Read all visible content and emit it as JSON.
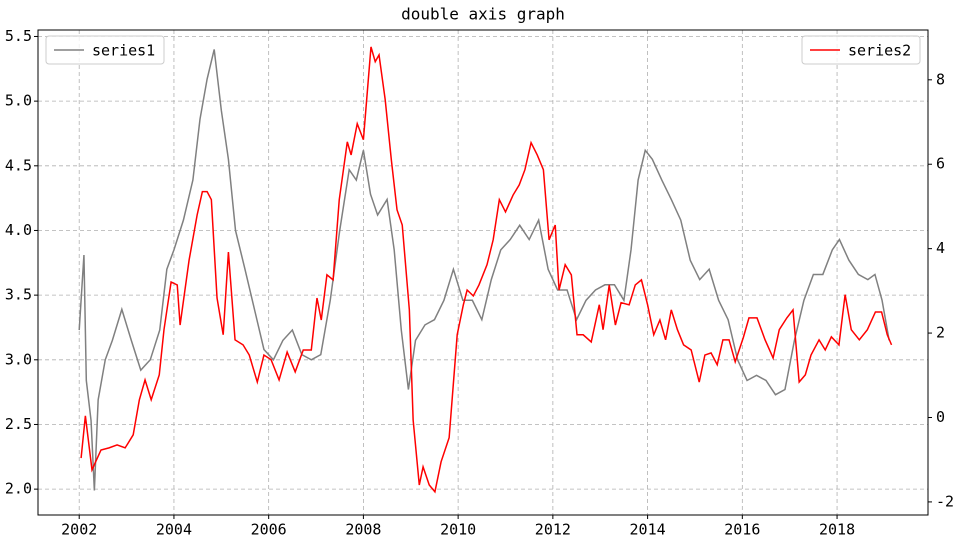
{
  "chart_data": {
    "type": "line",
    "title": "double axis graph",
    "xlim": [
      2001.13,
      2019.92
    ],
    "xticks": [
      2002,
      2004,
      2006,
      2008,
      2010,
      2012,
      2014,
      2016,
      2018
    ],
    "ylim": [
      1.8,
      5.55
    ],
    "yticks": [
      {
        "value": 2,
        "label": "2.0"
      },
      2.5,
      {
        "value": 3,
        "label": "3.0"
      },
      3.5,
      {
        "value": 4,
        "label": "4.0"
      },
      4.5,
      {
        "value": 5,
        "label": "5.0"
      },
      5.5
    ],
    "y2lim": [
      -2.31,
      9.18
    ],
    "y2ticks": [
      -2,
      0,
      2,
      4,
      6,
      8
    ],
    "grid": true,
    "series": [
      {
        "name": "series1",
        "color": "#808080",
        "axis": "y",
        "legend": "upper left",
        "x": [
          2002.0,
          2002.1,
          2002.15,
          2002.25,
          2002.32,
          2002.4,
          2002.55,
          2002.7,
          2002.9,
          2003.1,
          2003.3,
          2003.5,
          2003.7,
          2003.85,
          2004.0,
          2004.2,
          2004.4,
          2004.55,
          2004.7,
          2004.85,
          2005.0,
          2005.15,
          2005.3,
          2005.5,
          2005.7,
          2005.9,
          2006.1,
          2006.3,
          2006.5,
          2006.7,
          2006.9,
          2007.1,
          2007.3,
          2007.5,
          2007.7,
          2007.85,
          2008.0,
          2008.15,
          2008.3,
          2008.5,
          2008.65,
          2008.8,
          2008.95,
          2009.1,
          2009.3,
          2009.5,
          2009.7,
          2009.9,
          2010.1,
          2010.3,
          2010.5,
          2010.7,
          2010.9,
          2011.1,
          2011.3,
          2011.5,
          2011.7,
          2011.9,
          2012.1,
          2012.3,
          2012.5,
          2012.7,
          2012.9,
          2013.1,
          2013.3,
          2013.5,
          2013.65,
          2013.8,
          2013.95,
          2014.1,
          2014.3,
          2014.5,
          2014.7,
          2014.9,
          2015.1,
          2015.3,
          2015.5,
          2015.7,
          2015.9,
          2016.1,
          2016.3,
          2016.5,
          2016.7,
          2016.9,
          2017.1,
          2017.3,
          2017.5,
          2017.7,
          2017.9,
          2018.05,
          2018.25,
          2018.45,
          2018.65,
          2018.8,
          2018.95,
          2019.1
        ],
        "values": [
          3.23,
          3.81,
          2.84,
          2.53,
          1.99,
          2.69,
          3.0,
          3.15,
          3.39,
          3.15,
          2.92,
          3.0,
          3.23,
          3.7,
          3.85,
          4.08,
          4.39,
          4.86,
          5.17,
          5.4,
          4.93,
          4.55,
          4.0,
          3.7,
          3.39,
          3.08,
          3.0,
          3.15,
          3.23,
          3.04,
          3.0,
          3.04,
          3.46,
          4.0,
          4.47,
          4.39,
          4.62,
          4.28,
          4.12,
          4.24,
          3.85,
          3.23,
          2.77,
          3.15,
          3.27,
          3.31,
          3.46,
          3.7,
          3.46,
          3.46,
          3.31,
          3.62,
          3.85,
          3.93,
          4.04,
          3.93,
          4.08,
          3.7,
          3.54,
          3.54,
          3.31,
          3.46,
          3.54,
          3.58,
          3.58,
          3.46,
          3.85,
          4.39,
          4.62,
          4.55,
          4.39,
          4.24,
          4.08,
          3.77,
          3.62,
          3.7,
          3.46,
          3.31,
          3.0,
          2.84,
          2.88,
          2.84,
          2.73,
          2.77,
          3.15,
          3.46,
          3.66,
          3.66,
          3.85,
          3.93,
          3.77,
          3.66,
          3.62,
          3.66,
          3.46,
          3.15
        ]
      },
      {
        "name": "series2",
        "color": "#ff0000",
        "axis": "y2",
        "legend": "upper right",
        "x": [
          2002.04,
          2002.13,
          2002.27,
          2002.46,
          2002.63,
          2002.8,
          2002.97,
          2003.14,
          2003.27,
          2003.39,
          2003.52,
          2003.69,
          2003.79,
          2003.94,
          2004.07,
          2004.13,
          2004.32,
          2004.49,
          2004.6,
          2004.7,
          2004.79,
          2004.91,
          2005.04,
          2005.15,
          2005.29,
          2005.46,
          2005.59,
          2005.76,
          2005.9,
          2006.05,
          2006.22,
          2006.39,
          2006.56,
          2006.73,
          2006.9,
          2007.02,
          2007.11,
          2007.23,
          2007.36,
          2007.49,
          2007.66,
          2007.74,
          2007.87,
          2008.0,
          2008.16,
          2008.25,
          2008.33,
          2008.46,
          2008.59,
          2008.71,
          2008.82,
          2008.97,
          2009.05,
          2009.18,
          2009.26,
          2009.39,
          2009.51,
          2009.64,
          2009.81,
          2009.98,
          2010.11,
          2010.19,
          2010.32,
          2010.44,
          2010.61,
          2010.74,
          2010.87,
          2011.0,
          2011.16,
          2011.29,
          2011.41,
          2011.54,
          2011.67,
          2011.8,
          2011.92,
          2012.05,
          2012.13,
          2012.26,
          2012.39,
          2012.51,
          2012.64,
          2012.81,
          2012.98,
          2013.06,
          2013.19,
          2013.32,
          2013.44,
          2013.61,
          2013.74,
          2013.87,
          2014.0,
          2014.13,
          2014.26,
          2014.38,
          2014.5,
          2014.63,
          2014.76,
          2014.92,
          2015.09,
          2015.21,
          2015.34,
          2015.47,
          2015.59,
          2015.72,
          2015.85,
          2016.02,
          2016.14,
          2016.31,
          2016.48,
          2016.65,
          2016.78,
          2016.94,
          2017.07,
          2017.2,
          2017.33,
          2017.45,
          2017.62,
          2017.75,
          2017.88,
          2018.04,
          2018.17,
          2018.3,
          2018.47,
          2018.64,
          2018.81,
          2018.94,
          2019.06,
          2019.15
        ],
        "values": [
          -0.96,
          0.04,
          -1.24,
          -0.77,
          -0.72,
          -0.65,
          -0.72,
          -0.41,
          0.42,
          0.89,
          0.42,
          1.01,
          2.08,
          3.21,
          3.14,
          2.19,
          3.73,
          4.8,
          5.35,
          5.35,
          5.16,
          2.83,
          1.96,
          3.92,
          1.84,
          1.72,
          1.48,
          0.84,
          1.48,
          1.37,
          0.89,
          1.55,
          1.08,
          1.6,
          1.6,
          2.83,
          2.31,
          3.38,
          3.26,
          5.16,
          6.53,
          6.22,
          6.96,
          6.58,
          8.78,
          8.43,
          8.59,
          7.53,
          6.1,
          4.92,
          4.56,
          2.55,
          -0.06,
          -1.6,
          -1.17,
          -1.6,
          -1.76,
          -1.05,
          -0.48,
          1.96,
          2.67,
          3.02,
          2.88,
          3.14,
          3.62,
          4.21,
          5.16,
          4.87,
          5.27,
          5.51,
          5.87,
          6.51,
          6.22,
          5.87,
          4.21,
          4.56,
          3.02,
          3.62,
          3.38,
          1.96,
          1.96,
          1.79,
          2.67,
          2.08,
          3.14,
          2.19,
          2.72,
          2.67,
          3.14,
          3.26,
          2.67,
          1.96,
          2.31,
          1.84,
          2.55,
          2.08,
          1.72,
          1.6,
          0.84,
          1.48,
          1.53,
          1.25,
          1.84,
          1.84,
          1.32,
          1.89,
          2.36,
          2.36,
          1.84,
          1.41,
          2.08,
          2.36,
          2.55,
          0.84,
          1.01,
          1.48,
          1.84,
          1.6,
          1.91,
          1.72,
          2.91,
          2.08,
          1.84,
          2.08,
          2.5,
          2.5,
          1.96,
          1.72
        ]
      }
    ]
  }
}
